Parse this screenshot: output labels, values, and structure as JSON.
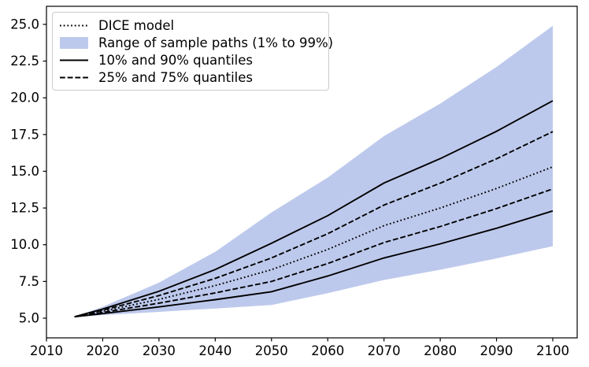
{
  "chart_data": {
    "type": "line",
    "title": "",
    "xlabel": "",
    "ylabel": "",
    "x": [
      2015,
      2020,
      2030,
      2040,
      2050,
      2060,
      2070,
      2080,
      2090,
      2100
    ],
    "band": {
      "label": "Range of sample paths (1% to 99%)",
      "color": "#bdc9ec",
      "upper": [
        5.1,
        5.78,
        7.42,
        9.52,
        12.2,
        14.57,
        17.4,
        19.61,
        22.1,
        24.9
      ],
      "lower": [
        5.1,
        5.21,
        5.43,
        5.66,
        5.9,
        6.7,
        7.6,
        8.3,
        9.07,
        9.9
      ]
    },
    "series": [
      {
        "name": "90% quantile",
        "style": "solid",
        "values": [
          5.1,
          5.62,
          6.83,
          8.31,
          10.1,
          11.98,
          14.2,
          15.86,
          17.72,
          19.8
        ]
      },
      {
        "name": "75% quantile",
        "style": "dashed",
        "values": [
          5.1,
          5.54,
          6.54,
          7.71,
          9.1,
          10.75,
          12.7,
          14.19,
          15.85,
          17.7
        ]
      },
      {
        "name": "DICE model",
        "style": "dotted",
        "values": [
          5.1,
          5.47,
          6.28,
          7.22,
          8.3,
          9.68,
          11.3,
          12.5,
          13.83,
          15.3
        ]
      },
      {
        "name": "25% quantile",
        "style": "dashed",
        "values": [
          5.1,
          5.39,
          6.02,
          6.72,
          7.5,
          8.72,
          10.15,
          11.24,
          12.46,
          13.8
        ]
      },
      {
        "name": "10% quantile",
        "style": "solid",
        "values": [
          5.1,
          5.31,
          5.77,
          6.26,
          6.8,
          7.87,
          9.1,
          10.06,
          11.12,
          12.3
        ]
      }
    ],
    "x_ticks": [
      2010,
      2020,
      2030,
      2040,
      2050,
      2060,
      2070,
      2080,
      2090,
      2100
    ],
    "y_ticks": [
      5.0,
      7.5,
      10.0,
      12.5,
      15.0,
      17.5,
      20.0,
      22.5,
      25.0
    ],
    "y_tick_labels": [
      "5.0",
      "7.5",
      "10.0",
      "12.5",
      "15.0",
      "17.5",
      "20.0",
      "22.5",
      "25.0"
    ],
    "xlim": [
      2010,
      2104.34
    ],
    "ylim": [
      3.66,
      26.23
    ],
    "line_color": "#000000",
    "grid": false,
    "legend_position": "upper left"
  },
  "legend": {
    "items": [
      {
        "label": "DICE model",
        "glyph": "dotted-line"
      },
      {
        "label": "Range of sample paths (1% to 99%)",
        "glyph": "band-patch"
      },
      {
        "label": "10% and 90% quantiles",
        "glyph": "solid-line"
      },
      {
        "label": "25% and 75% quantiles",
        "glyph": "dashed-line"
      }
    ]
  }
}
